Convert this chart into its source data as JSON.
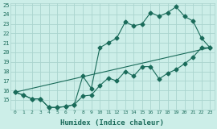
{
  "xlabel": "Humidex (Indice chaleur)",
  "bg_color": "#cceee8",
  "grid_color": "#aad4ce",
  "line_color": "#1a6b5a",
  "xlim": [
    -0.5,
    23.5
  ],
  "ylim": [
    14,
    25.2
  ],
  "xticks": [
    0,
    1,
    2,
    3,
    4,
    5,
    6,
    7,
    8,
    9,
    10,
    11,
    12,
    13,
    14,
    15,
    16,
    17,
    18,
    19,
    20,
    21,
    22,
    23
  ],
  "yticks": [
    15,
    16,
    17,
    18,
    19,
    20,
    21,
    22,
    23,
    24,
    25
  ],
  "curve1_x": [
    0,
    1,
    2,
    3,
    4,
    5,
    6,
    7,
    8,
    9,
    10,
    11,
    12,
    13,
    14,
    15,
    16,
    17,
    18,
    19,
    20,
    21,
    22,
    23
  ],
  "curve1_y": [
    15.8,
    15.5,
    15.1,
    15.1,
    14.2,
    14.2,
    14.3,
    14.5,
    15.4,
    15.5,
    16.5,
    17.3,
    17.0,
    18.0,
    17.5,
    18.5,
    18.5,
    17.2,
    17.8,
    18.2,
    18.8,
    19.5,
    20.5,
    20.5
  ],
  "curve2_x": [
    0,
    1,
    2,
    3,
    4,
    5,
    6,
    7,
    8,
    9,
    10,
    11,
    12,
    13,
    14,
    15,
    16,
    17,
    18,
    19,
    20,
    21,
    22,
    23
  ],
  "curve2_y": [
    15.8,
    15.5,
    15.1,
    15.1,
    14.2,
    14.2,
    14.3,
    14.5,
    17.5,
    16.2,
    20.5,
    21.0,
    21.5,
    23.2,
    22.8,
    23.0,
    24.2,
    23.8,
    24.2,
    24.8,
    23.8,
    23.3,
    21.5,
    20.5
  ],
  "curve3_x": [
    0,
    23
  ],
  "curve3_y": [
    15.8,
    20.5
  ],
  "markersize": 2.5
}
